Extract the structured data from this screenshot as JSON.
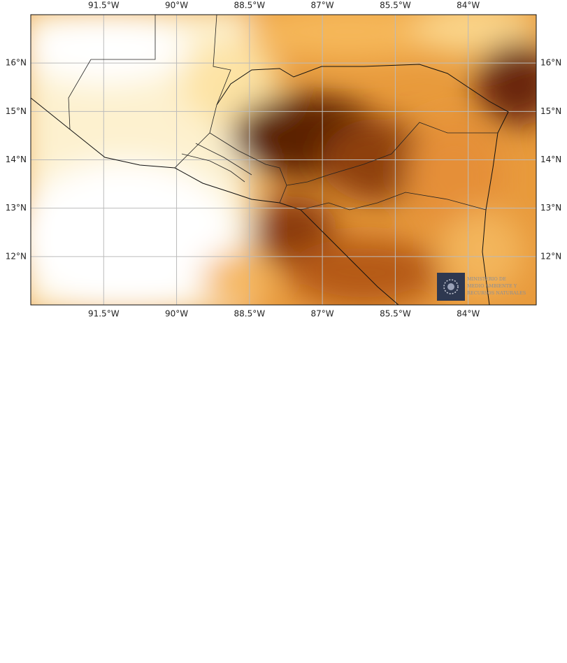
{
  "map": {
    "lon_lim": [
      -93.0,
      -82.6
    ],
    "lat_lim": [
      11.0,
      17.0
    ],
    "lon_ticks": [
      {
        "value": -91.5,
        "label": "91.5°W"
      },
      {
        "value": -90,
        "label": "90°W"
      },
      {
        "value": -88.5,
        "label": "88.5°W"
      },
      {
        "value": -87,
        "label": "87°W"
      },
      {
        "value": -85.5,
        "label": "85.5°W"
      },
      {
        "value": -84,
        "label": "84°W"
      }
    ],
    "lat_ticks": [
      {
        "value": 16,
        "label": "16°N"
      },
      {
        "value": 15,
        "label": "15°N"
      },
      {
        "value": 14,
        "label": "14°N"
      },
      {
        "value": 13,
        "label": "13°N"
      },
      {
        "value": 12,
        "label": "12°N"
      }
    ],
    "grid": true,
    "logo": {
      "lines": [
        "MINISTERIO DE",
        "MEDIO AMBIENTE Y",
        "RECURSOS NATURALES"
      ]
    }
  }
}
